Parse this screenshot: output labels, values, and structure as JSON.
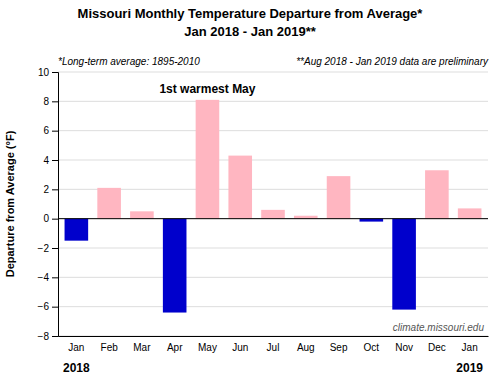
{
  "chart_data": {
    "type": "bar",
    "title": "Missouri Monthly Temperature Departure from Average*",
    "subtitle": "Jan 2018 - Jan 2019**",
    "y_label": "Departure from Average (°F)",
    "categories": [
      "Jan",
      "Feb",
      "Mar",
      "Apr",
      "May",
      "Jun",
      "Jul",
      "Aug",
      "Sep",
      "Oct",
      "Nov",
      "Dec",
      "Jan"
    ],
    "years": [
      "2018",
      null,
      null,
      null,
      null,
      null,
      null,
      null,
      null,
      null,
      null,
      null,
      "2019"
    ],
    "values": [
      -1.5,
      2.1,
      0.5,
      -6.4,
      8.1,
      4.3,
      0.6,
      0.2,
      2.9,
      -0.2,
      -6.2,
      3.3,
      0.7
    ],
    "colors": [
      "#0000cc",
      "#ffb6c1",
      "#ffb6c1",
      "#0000cc",
      "#ffb6c1",
      "#ffb6c1",
      "#ffb6c1",
      "#ffb6c1",
      "#ffb6c1",
      "#0000cc",
      "#0000cc",
      "#ffb6c1",
      "#ffb6c1"
    ],
    "ylim": [
      -8.0,
      10.0
    ],
    "yticks": [
      -8.0,
      -6.0,
      -4.0,
      -2.0,
      0.0,
      2.0,
      4.0,
      6.0,
      8.0,
      10.0
    ],
    "grid": true,
    "annotations": [
      {
        "text": "1st warmest May",
        "x": 4,
        "y": 8.55
      }
    ],
    "footnotes": [
      "*Long-term average: 1895-2010",
      "**Aug 2018 - Jan 2019 data are preliminary"
    ],
    "source": "climate.missouri.edu"
  }
}
